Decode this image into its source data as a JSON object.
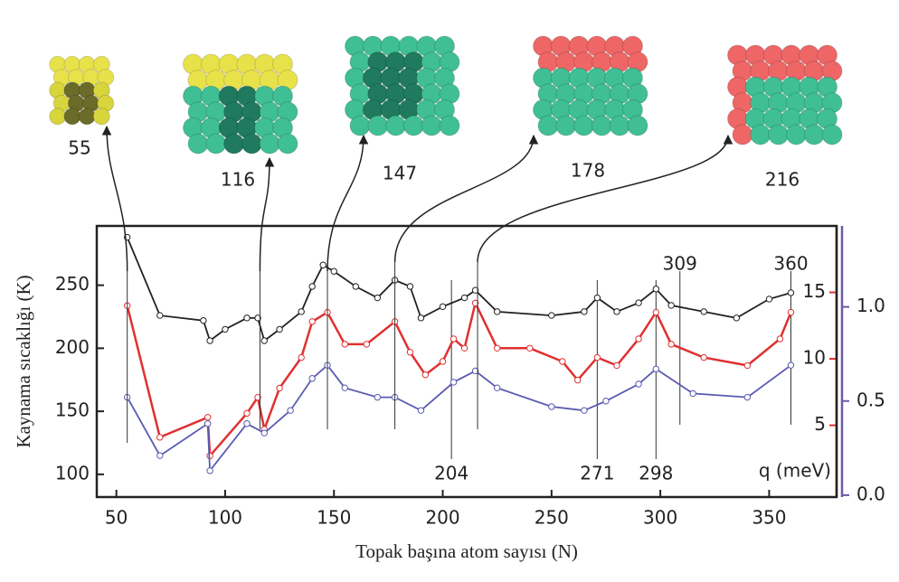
{
  "chart_data": {
    "type": "line",
    "xlabel": "Topak başına atom sayısı (N)",
    "ylabel": "Kaynama sıcaklığı (K)",
    "q_label": "q (meV)",
    "xlim": [
      41,
      381
    ],
    "xticks": [
      50,
      100,
      150,
      200,
      250,
      300,
      350
    ],
    "ylim": [
      82,
      297
    ],
    "yticks": [
      100,
      150,
      200,
      250
    ],
    "y2lim": [
      -0.4,
      20
    ],
    "y2ticks": [
      5,
      10,
      15
    ],
    "y3lim": [
      -0.01,
      1.43
    ],
    "y3ticks": [
      {
        "value": 0,
        "label": "0.0"
      },
      {
        "value": 0.5,
        "label": "0.5"
      },
      {
        "value": 1,
        "label": "1.0"
      }
    ],
    "y2color": "#e03030",
    "y3color": "#6a5aa8",
    "clusters": [
      55,
      116,
      147,
      178,
      216
    ],
    "marked_n": [
      204,
      271,
      298,
      309,
      360
    ],
    "series": [
      {
        "color": "#222222",
        "axis": "y",
        "x": [
          55,
          70,
          90,
          93,
          100,
          110,
          115,
          118,
          125,
          135,
          140,
          145,
          150,
          160,
          170,
          178,
          185,
          190,
          200,
          210,
          215,
          225,
          250,
          265,
          271,
          280,
          290,
          298,
          305,
          320,
          335,
          350,
          360
        ],
        "values": [
          288,
          226,
          222,
          206,
          215,
          224,
          224,
          206,
          215,
          229,
          249,
          266,
          261,
          249,
          240,
          254,
          249,
          224,
          233,
          240,
          246,
          229,
          226,
          229,
          240,
          229,
          236,
          247,
          234,
          229,
          224,
          239,
          244
        ]
      },
      {
        "color": "#e03030",
        "axis": "y2",
        "x": [
          55,
          70,
          92,
          93,
          110,
          115,
          118,
          125,
          135,
          140,
          147,
          155,
          165,
          178,
          185,
          192,
          200,
          205,
          210,
          215,
          225,
          240,
          255,
          262,
          271,
          280,
          290,
          298,
          305,
          320,
          340,
          355,
          360
        ],
        "values": [
          14.0,
          4.1,
          5.6,
          2.7,
          5.9,
          7.1,
          4.7,
          7.8,
          10.1,
          12.8,
          13.5,
          11.1,
          11.1,
          12.8,
          10.5,
          8.8,
          9.8,
          11.5,
          10.8,
          14.2,
          10.8,
          10.8,
          9.8,
          8.4,
          10.1,
          9.5,
          11.5,
          13.5,
          11.1,
          10.1,
          9.5,
          11.5,
          13.5
        ]
      },
      {
        "color": "#5a5ab0",
        "axis": "y3",
        "x": [
          55,
          70,
          92,
          93,
          110,
          118,
          130,
          140,
          147,
          155,
          170,
          178,
          190,
          205,
          215,
          225,
          250,
          265,
          275,
          290,
          298,
          315,
          340,
          360
        ],
        "values": [
          0.52,
          0.21,
          0.38,
          0.13,
          0.38,
          0.33,
          0.45,
          0.62,
          0.69,
          0.57,
          0.52,
          0.52,
          0.45,
          0.6,
          0.66,
          0.57,
          0.47,
          0.45,
          0.5,
          0.59,
          0.67,
          0.54,
          0.52,
          0.69
        ]
      }
    ]
  }
}
